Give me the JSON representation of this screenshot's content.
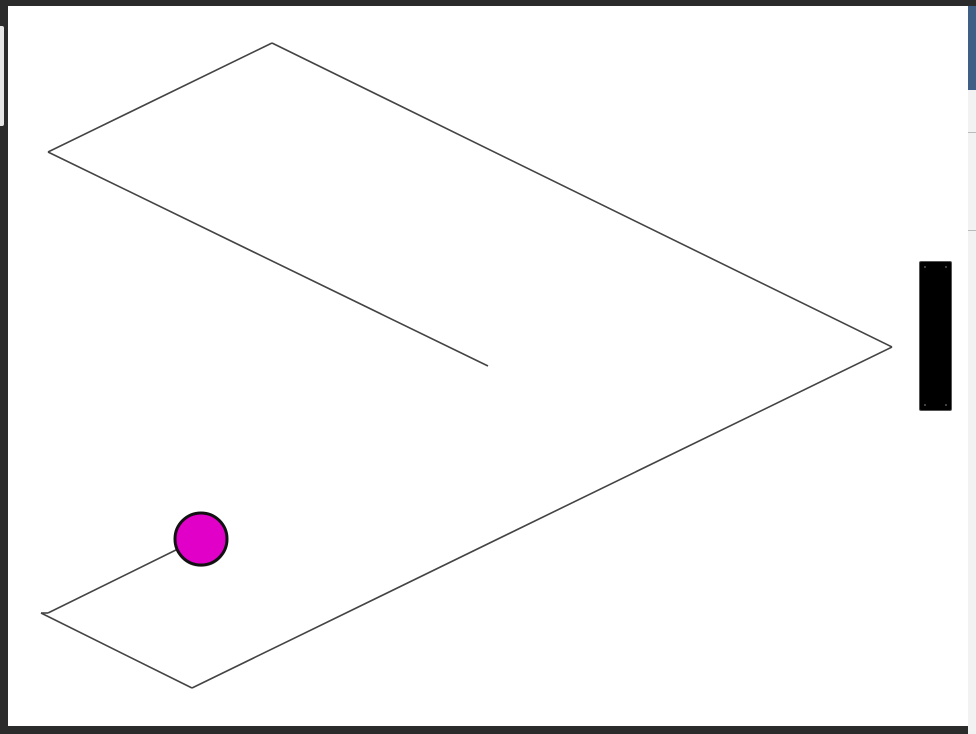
{
  "scene": {
    "background_color": "#ffffff",
    "frame_color": "#2b2b2b",
    "path_color": "#444444"
  },
  "ball": {
    "name": "ball",
    "color": "#e000c8",
    "outline_color": "#111111"
  },
  "paddle": {
    "name": "paddle",
    "color": "#000000"
  },
  "track": {
    "name": "zigzag-track",
    "segments": 7
  }
}
